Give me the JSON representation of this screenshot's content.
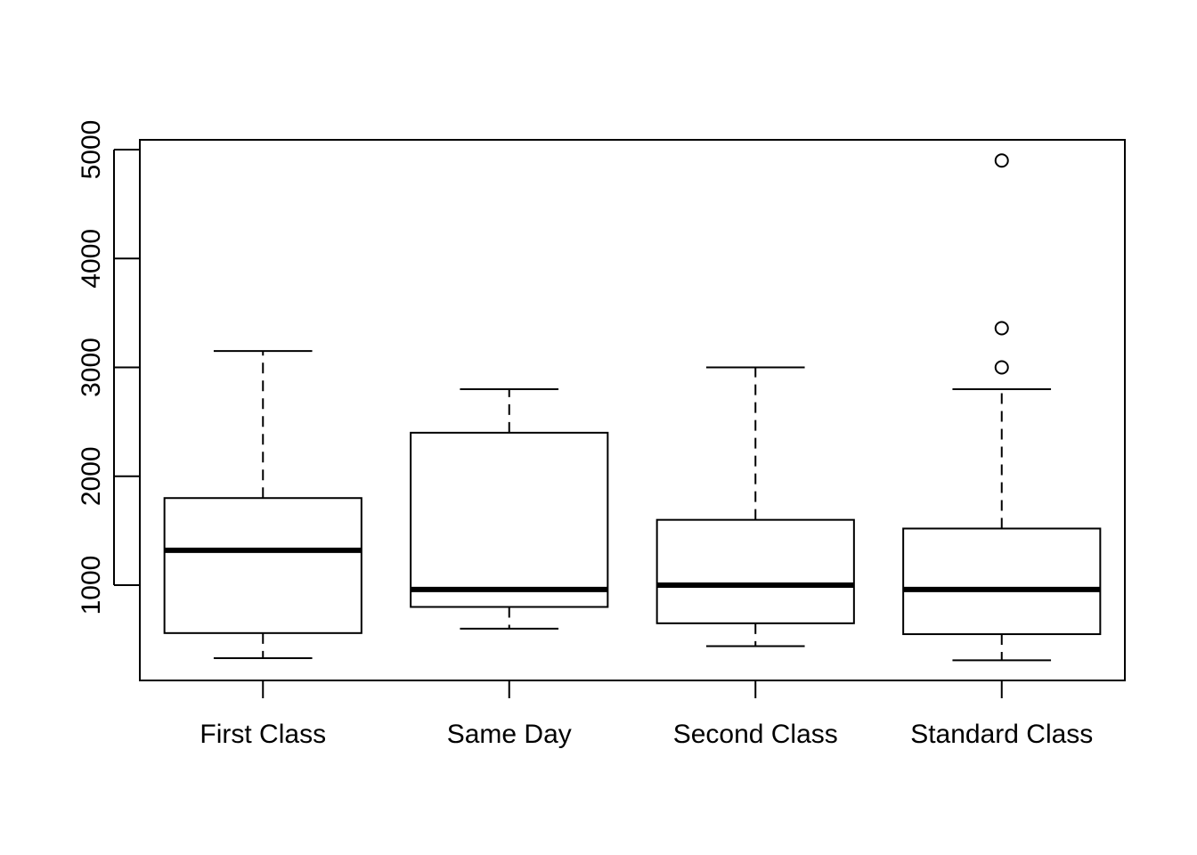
{
  "chart_data": {
    "type": "box",
    "title": "",
    "xlabel": "",
    "ylabel": "",
    "categories": [
      "First Class",
      "Same Day",
      "Second Class",
      "Standard Class"
    ],
    "boxes": [
      {
        "category": "First Class",
        "whisker_low": 330,
        "q1": 560,
        "median": 1320,
        "q3": 1800,
        "whisker_high": 3150,
        "outliers": []
      },
      {
        "category": "Same Day",
        "whisker_low": 600,
        "q1": 800,
        "median": 960,
        "q3": 2400,
        "whisker_high": 2800,
        "outliers": []
      },
      {
        "category": "Second Class",
        "whisker_low": 440,
        "q1": 650,
        "median": 1000,
        "q3": 1600,
        "whisker_high": 3000,
        "outliers": []
      },
      {
        "category": "Standard Class",
        "whisker_low": 310,
        "q1": 550,
        "median": 960,
        "q3": 1520,
        "whisker_high": 2800,
        "outliers": [
          3000,
          3360,
          4900
        ]
      }
    ],
    "y_ticks": [
      1000,
      2000,
      3000,
      4000,
      5000
    ],
    "ylim": [
      125,
      5090
    ],
    "grid": false,
    "legend": "none"
  }
}
